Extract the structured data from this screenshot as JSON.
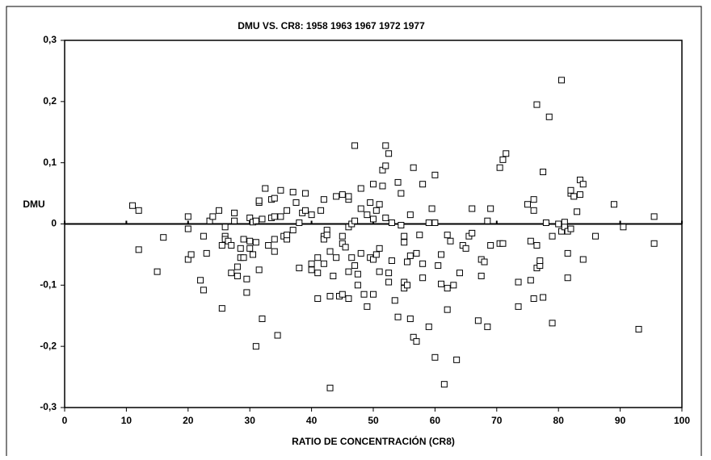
{
  "chart_data": {
    "type": "scatter",
    "title": "DMU VS. CR8:   1958 1963 1967 1972 1977",
    "xlabel": "RATIO DE CONCENTRACIÓN (CR8)",
    "ylabel": "DMU",
    "xlim": [
      0,
      100
    ],
    "xticks": [
      0,
      10,
      20,
      30,
      40,
      50,
      60,
      70,
      80,
      90,
      100
    ],
    "ylim": [
      -0.3,
      0.3
    ],
    "yticks": [
      {
        "value": -0.3,
        "label": "-0,3"
      },
      {
        "value": -0.2,
        "label": "-0,2"
      },
      {
        "value": -0.1,
        "label": "-0,1"
      },
      0,
      {
        "value": 0.1,
        "label": "0,1"
      },
      {
        "value": 0.2,
        "label": "0,2"
      },
      {
        "value": 0.3,
        "label": "0,3"
      }
    ],
    "reference_line": 0,
    "marker": "square",
    "color": "#000000",
    "x": [
      11,
      12,
      12,
      15,
      16,
      20,
      20,
      20,
      20.5,
      22,
      22.5,
      22.5,
      23,
      23.5,
      24,
      25,
      25.5,
      25.5,
      26,
      26,
      26,
      26.5,
      27,
      27,
      27.5,
      27.5,
      28,
      28,
      28.5,
      28.5,
      29,
      29,
      29.5,
      29.5,
      30,
      30,
      30,
      30.5,
      30.5,
      31,
      31,
      31,
      31.5,
      31.5,
      31.5,
      32,
      32,
      32.5,
      33,
      33.5,
      33.5,
      34,
      34,
      34,
      34,
      34.5,
      35,
      35,
      35.5,
      36,
      36,
      36,
      37,
      37,
      37.5,
      38,
      38,
      38.5,
      39,
      39,
      40,
      40,
      40,
      41,
      41,
      41,
      41.5,
      42,
      42,
      42,
      42,
      42.5,
      42.5,
      43,
      43,
      43,
      43.5,
      44,
      44,
      44.5,
      45,
      45,
      45,
      45,
      45.5,
      46,
      46,
      46,
      46,
      46,
      46.5,
      46.5,
      47,
      47,
      47,
      47.5,
      47.5,
      48,
      48,
      48,
      48.5,
      49,
      49,
      49.5,
      49.5,
      50,
      50,
      50,
      50,
      50.5,
      50.5,
      51,
      51,
      51,
      51.5,
      51.5,
      52,
      52,
      52,
      52.5,
      52.5,
      52.5,
      53,
      53,
      53.5,
      54,
      54,
      54.5,
      54.5,
      55,
      55,
      55,
      55,
      55.5,
      55.5,
      56,
      56,
      56,
      56.5,
      56.5,
      57,
      57,
      57.5,
      58,
      58,
      58,
      59,
      59,
      59.5,
      60,
      60,
      60,
      60.5,
      61,
      61,
      61.5,
      62,
      62,
      62,
      62.5,
      63,
      63.5,
      64,
      64.5,
      65,
      65.5,
      66,
      66,
      67,
      67.5,
      67.5,
      68,
      68.5,
      68.5,
      69,
      69,
      70.5,
      70.5,
      71,
      71,
      71.5,
      73.5,
      73.5,
      75,
      75.5,
      75.5,
      76,
      76,
      76,
      76.5,
      76.5,
      76.5,
      77,
      77,
      77.5,
      77.5,
      78,
      78.5,
      79,
      79,
      80,
      80.5,
      80.5,
      81,
      81,
      81.5,
      81.5,
      81.5,
      82,
      82,
      82,
      82.5,
      83,
      83.5,
      83.5,
      84,
      84,
      86,
      89,
      90.5,
      93,
      95.5,
      95.5
    ],
    "values": [
      0.03,
      0.022,
      -0.042,
      -0.078,
      -0.022,
      0.012,
      -0.008,
      -0.058,
      -0.05,
      -0.092,
      -0.108,
      -0.02,
      -0.048,
      0.005,
      0.012,
      0.022,
      -0.138,
      -0.035,
      -0.005,
      -0.02,
      -0.025,
      -0.028,
      -0.035,
      -0.08,
      0.005,
      0.018,
      -0.07,
      -0.085,
      -0.055,
      -0.04,
      -0.055,
      -0.025,
      -0.09,
      -0.112,
      -0.028,
      0.01,
      -0.04,
      0.003,
      -0.05,
      -0.03,
      0.005,
      -0.2,
      0.035,
      0.038,
      -0.075,
      -0.155,
      0.008,
      0.058,
      -0.035,
      0.01,
      0.04,
      0.042,
      0.012,
      -0.045,
      -0.025,
      -0.182,
      0.055,
      0.012,
      -0.02,
      0.022,
      -0.025,
      -0.018,
      0.052,
      -0.01,
      0.035,
      -0.072,
      0.002,
      0.018,
      0.05,
      0.022,
      0.015,
      -0.065,
      -0.075,
      -0.122,
      -0.055,
      -0.08,
      0.022,
      0.04,
      -0.02,
      -0.025,
      -0.065,
      -0.01,
      -0.018,
      -0.268,
      -0.045,
      -0.118,
      -0.085,
      0.045,
      -0.055,
      -0.118,
      -0.115,
      -0.02,
      0.048,
      -0.032,
      -0.038,
      0.04,
      0.045,
      -0.005,
      -0.078,
      -0.122,
      -0.055,
      0,
      0.005,
      0.128,
      -0.068,
      -0.082,
      -0.1,
      0.025,
      0.058,
      -0.048,
      -0.115,
      -0.135,
      0.015,
      -0.055,
      0.035,
      0.065,
      -0.058,
      0.008,
      -0.115,
      -0.05,
      0.022,
      0.032,
      -0.04,
      -0.078,
      0.088,
      0.062,
      0.128,
      0.095,
      0.01,
      0.115,
      -0.08,
      -0.095,
      0.002,
      -0.06,
      -0.125,
      -0.152,
      0.068,
      -0.002,
      0.05,
      -0.02,
      -0.03,
      -0.095,
      -0.105,
      -0.1,
      -0.062,
      -0.052,
      -0.155,
      0.015,
      -0.185,
      0.092,
      -0.192,
      -0.048,
      -0.018,
      0.065,
      -0.065,
      -0.088,
      -0.168,
      0.002,
      0.025,
      0.08,
      -0.218,
      0.002,
      -0.068,
      -0.05,
      -0.098,
      -0.262,
      -0.018,
      -0.105,
      -0.14,
      -0.028,
      -0.1,
      -0.222,
      -0.08,
      -0.035,
      -0.04,
      -0.02,
      -0.015,
      0.025,
      -0.158,
      -0.058,
      -0.085,
      -0.062,
      -0.168,
      0.005,
      0.025,
      -0.035,
      -0.032,
      0.092,
      0.105,
      -0.032,
      0.115,
      -0.095,
      -0.135,
      0.032,
      -0.028,
      -0.092,
      -0.122,
      0.04,
      0.022,
      0.195,
      -0.035,
      -0.072,
      -0.068,
      -0.06,
      -0.12,
      0.085,
      0.002,
      0.175,
      -0.162,
      -0.02,
      0,
      -0.012,
      0.235,
      0.003,
      -0.005,
      -0.088,
      -0.048,
      -0.012,
      0.05,
      0.055,
      -0.008,
      0.045,
      0.02,
      0.048,
      0.072,
      0.065,
      -0.058,
      -0.02,
      0.032,
      -0.005,
      -0.172,
      0.012,
      -0.032
    ]
  }
}
